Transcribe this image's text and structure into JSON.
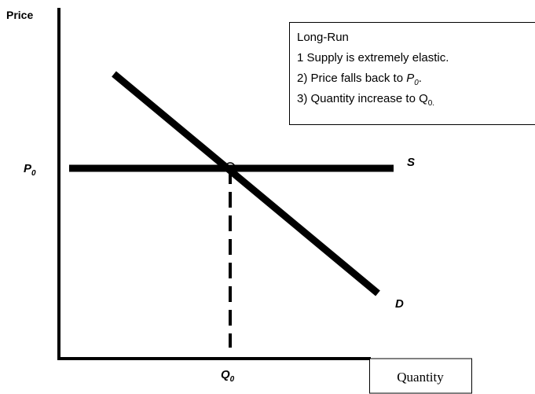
{
  "axes": {
    "y_label": "Price",
    "x_label": "Quantity"
  },
  "labels": {
    "price_level": {
      "symbol": "P",
      "sub": "0"
    },
    "supply": "S",
    "demand": "D",
    "quantity_level": {
      "symbol": "Q",
      "sub": "0"
    }
  },
  "note": {
    "title": "Long-Run",
    "lines": [
      {
        "before": "1 Supply is extremely elastic."
      },
      {
        "before": "2) Price falls back to ",
        "symbol": "P",
        "sub": "0",
        "after": "."
      },
      {
        "before": "3) Quantity increase to ",
        "symbol": "Q",
        "sub": "0."
      }
    ]
  }
}
